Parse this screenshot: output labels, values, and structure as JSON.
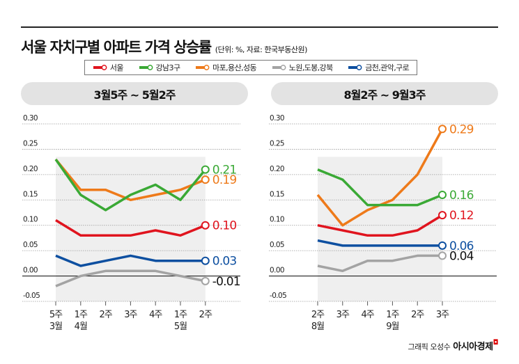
{
  "title": "서울 자치구별 아파트 가격 상승률",
  "subtitle": "(단위: %, 자료: 한국부동산원)",
  "credit": {
    "author": "그래픽 오성수",
    "brand": "아시아경제"
  },
  "legend": [
    {
      "name": "서울",
      "color": "#e0141e"
    },
    {
      "name": "강남3구",
      "color": "#3aa935"
    },
    {
      "name": "마포,용산,성동",
      "color": "#ee7a1a"
    },
    {
      "name": "노원,도봉,강북",
      "color": "#a3a3a3"
    },
    {
      "name": "금천,관악,구로",
      "color": "#0d4fa0"
    }
  ],
  "chart_data": [
    {
      "type": "line",
      "title": "3월5주 ~ 5월2주",
      "categories": [
        "5주\n3월",
        "1주\n4월",
        "2주",
        "3주",
        "4주",
        "1주\n5월",
        "2주"
      ],
      "ylim": [
        -0.05,
        0.3
      ],
      "yticks": [
        "0.30",
        "0.25",
        "0.20",
        "0.15",
        "0.10",
        "0.05",
        "0.00",
        "-0.05"
      ],
      "grid": true,
      "series": [
        {
          "name": "서울",
          "values": [
            0.11,
            0.08,
            0.08,
            0.08,
            0.09,
            0.08,
            0.1
          ],
          "end_label": "0.10"
        },
        {
          "name": "강남3구",
          "values": [
            0.23,
            0.16,
            0.13,
            0.16,
            0.18,
            0.15,
            0.21
          ],
          "end_label": "0.21"
        },
        {
          "name": "마포,용산,성동",
          "values": [
            0.23,
            0.17,
            0.17,
            0.15,
            0.16,
            0.17,
            0.19
          ],
          "end_label": "0.19"
        },
        {
          "name": "노원,도봉,강북",
          "values": [
            -0.02,
            0.0,
            0.01,
            0.01,
            0.01,
            0.0,
            -0.01
          ],
          "end_label": "-0.01"
        },
        {
          "name": "금천,관악,구로",
          "values": [
            0.04,
            0.02,
            0.03,
            0.04,
            0.03,
            0.03,
            0.03
          ],
          "end_label": "0.03"
        }
      ]
    },
    {
      "type": "line",
      "title": "8월2주 ~ 9월3주",
      "categories": [
        "2주\n8월",
        "3주",
        "4주",
        "1주\n9월",
        "2주",
        "3주"
      ],
      "ylim": [
        -0.05,
        0.3
      ],
      "yticks": [
        "0.30",
        "0.25",
        "0.20",
        "0.15",
        "0.10",
        "0.05",
        "0.00",
        "-0.05"
      ],
      "grid": true,
      "series": [
        {
          "name": "서울",
          "values": [
            0.1,
            0.09,
            0.08,
            0.08,
            0.09,
            0.12
          ],
          "end_label": "0.12"
        },
        {
          "name": "강남3구",
          "values": [
            0.21,
            0.19,
            0.14,
            0.14,
            0.14,
            0.16
          ],
          "end_label": "0.16"
        },
        {
          "name": "마포,용산,성동",
          "values": [
            0.16,
            0.1,
            0.13,
            0.15,
            0.2,
            0.29
          ],
          "end_label": "0.29"
        },
        {
          "name": "노원,도봉,강북",
          "values": [
            0.02,
            0.01,
            0.03,
            0.03,
            0.04,
            0.04
          ],
          "end_label": "0.04"
        },
        {
          "name": "금천,관악,구로",
          "values": [
            0.07,
            0.06,
            0.06,
            0.06,
            0.06,
            0.06
          ],
          "end_label": "0.06"
        }
      ]
    }
  ]
}
